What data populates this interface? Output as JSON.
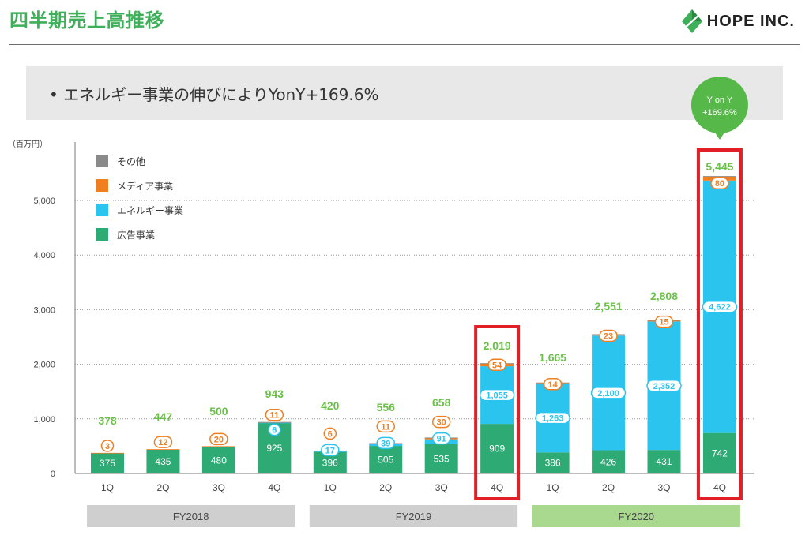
{
  "header": {
    "title": "四半期売上高推移",
    "logo_text": "HOPE INC."
  },
  "banner": {
    "text": "• エネルギー事業の伸びによりYonY+169.6%"
  },
  "callout": {
    "line1": "Y on Y",
    "line2": "+169.6%"
  },
  "colors": {
    "title_green": "#3fb05a",
    "ad": "#2eaa74",
    "energy": "#2ac4ef",
    "media": "#f07f22",
    "other": "#8a8a8a",
    "highlight": "#e21f26",
    "total_label": "#6cc04a",
    "fy_gray": "#cfcfcf",
    "fy_green": "#a9d98f"
  },
  "chart_data": {
    "type": "bar",
    "stacked": true,
    "unit_label": "（百万円）",
    "categories": [
      "1Q",
      "2Q",
      "3Q",
      "4Q",
      "1Q",
      "2Q",
      "3Q",
      "4Q",
      "1Q",
      "2Q",
      "3Q",
      "4Q"
    ],
    "groups": [
      {
        "label": "FY2018",
        "range": [
          0,
          3
        ]
      },
      {
        "label": "FY2019",
        "range": [
          4,
          7
        ]
      },
      {
        "label": "FY2020",
        "range": [
          8,
          11
        ]
      }
    ],
    "series": [
      {
        "name": "広告事業",
        "color_key": "ad",
        "values": [
          375,
          435,
          480,
          925,
          396,
          505,
          535,
          909,
          386,
          426,
          431,
          742
        ],
        "labels": [
          "375",
          "435",
          "480",
          "925",
          "396",
          "505",
          "535",
          "909",
          "386",
          "426",
          "431",
          "742"
        ]
      },
      {
        "name": "エネルギー事業",
        "color_key": "energy",
        "values": [
          0,
          0,
          0,
          6,
          17,
          39,
          91,
          1055,
          1263,
          2100,
          2352,
          4622
        ],
        "labels": [
          "",
          "",
          "",
          "6",
          "17",
          "39",
          "91",
          "1,055",
          "1,263",
          "2,100",
          "2,352",
          "4,622"
        ]
      },
      {
        "name": "メディア事業",
        "color_key": "media",
        "values": [
          3,
          12,
          20,
          11,
          6,
          11,
          30,
          54,
          14,
          23,
          15,
          80
        ],
        "labels": [
          "3",
          "12",
          "20",
          "11",
          "6",
          "11",
          "30",
          "54",
          "14",
          "23",
          "15",
          "80"
        ]
      },
      {
        "name": "その他",
        "color_key": "other",
        "values": [
          0,
          0,
          0,
          1,
          1,
          1,
          2,
          1,
          2,
          2,
          10,
          1
        ],
        "labels": [
          "",
          "",
          "",
          "",
          "",
          "",
          "",
          "",
          "",
          "",
          "",
          ""
        ]
      }
    ],
    "totals": [
      378,
      447,
      500,
      943,
      420,
      556,
      658,
      2019,
      1665,
      2551,
      2808,
      5445
    ],
    "total_labels": [
      "378",
      "447",
      "500",
      "943",
      "420",
      "556",
      "658",
      "2,019",
      "1,665",
      "2,551",
      "2,808",
      "5,445"
    ],
    "legend_order": [
      "その他",
      "メディア事業",
      "エネルギー事業",
      "広告事業"
    ],
    "yticks": [
      0,
      1000,
      2000,
      3000,
      4000,
      5000
    ],
    "ytick_labels": [
      "0",
      "1,000",
      "2,000",
      "3,000",
      "4,000",
      "5,000"
    ],
    "ylim": [
      0,
      6000
    ],
    "highlight_indices": [
      7,
      11
    ],
    "grid": "dotted horizontal"
  }
}
